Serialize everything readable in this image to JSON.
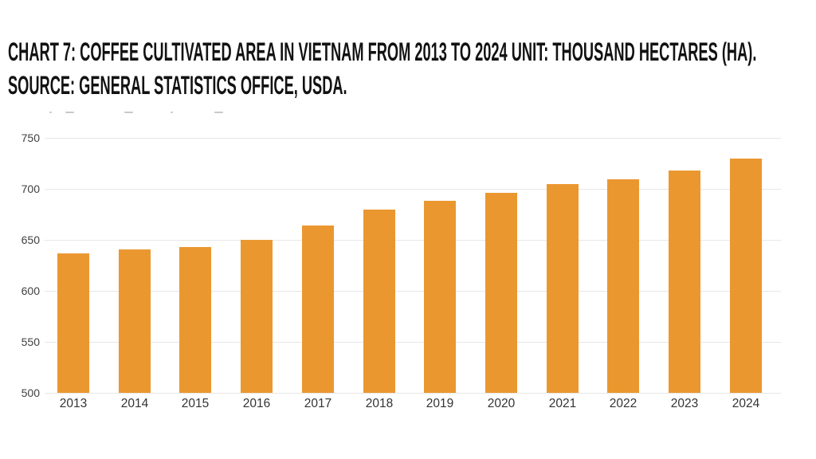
{
  "title": {
    "line1": "CHART 7: COFFEE CULTIVATED AREA IN VIETNAM FROM 2013 TO 2024 UNIT: THOUSAND HECTARES (HA).",
    "line2": "SOURCE: GENERAL STATISTICS OFFICE, USDA."
  },
  "chart_data": {
    "type": "bar",
    "title": "Chart 7: Coffee cultivated area in Vietnam from 2013 to 2024",
    "unit": "thousand hectares (ha)",
    "source": "General Statistics Office, USDA",
    "categories": [
      "2013",
      "2014",
      "2015",
      "2016",
      "2017",
      "2018",
      "2019",
      "2020",
      "2021",
      "2022",
      "2023",
      "2024"
    ],
    "values": [
      637,
      641,
      643,
      650,
      664,
      680,
      688,
      696,
      705,
      709,
      718,
      730
    ],
    "xlabel": "",
    "ylabel": "",
    "ylim": [
      500,
      750
    ],
    "yticks": [
      500,
      550,
      600,
      650,
      700,
      750
    ],
    "grid": true,
    "legend": "none",
    "bar_color": "#EB9730",
    "gridline_color": "#e7e7e7",
    "tick_color": "#3f3f3f",
    "x_label_color": "#333333"
  }
}
